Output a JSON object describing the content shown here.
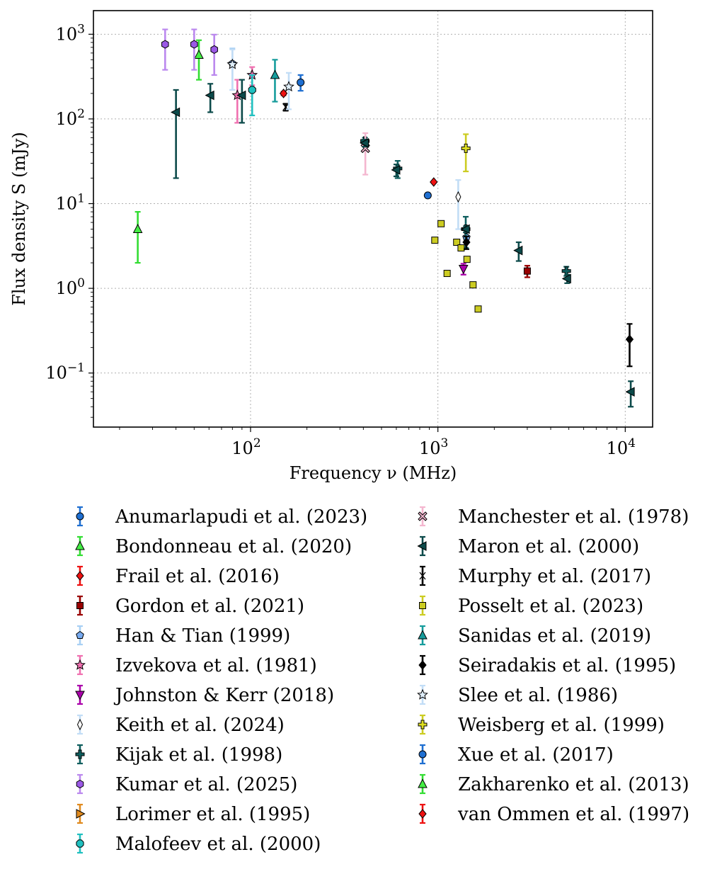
{
  "chart_data": {
    "type": "scatter",
    "title": "",
    "xlabel": "Frequency ν (MHz)",
    "ylabel": "Flux density S (mJy)",
    "xscale": "log",
    "yscale": "log",
    "xlim": [
      14.5,
      14000
    ],
    "ylim": [
      0.023,
      1900
    ],
    "grid": true,
    "x_ticks": [
      {
        "value": 100,
        "base": "10",
        "exp": "2"
      },
      {
        "value": 1000,
        "base": "10",
        "exp": "3"
      },
      {
        "value": 10000,
        "base": "10",
        "exp": "4"
      }
    ],
    "y_ticks": [
      {
        "value": 0.1,
        "base": "10",
        "exp": "−1"
      },
      {
        "value": 1,
        "base": "10",
        "exp": "0"
      },
      {
        "value": 10,
        "base": "10",
        "exp": "1"
      },
      {
        "value": 100,
        "base": "10",
        "exp": "2"
      },
      {
        "value": 1000,
        "base": "10",
        "exp": "3"
      }
    ],
    "series": [
      {
        "name": "Anumarlapudi et al. (2023)",
        "marker": "circle",
        "color": "#1f6fd1",
        "ecolor": "#1f6fd1",
        "points": [
          {
            "x": 185,
            "y": 270,
            "lo": 215,
            "hi": 330
          }
        ]
      },
      {
        "name": "Bondonneau et al. (2020)",
        "marker": "triangle-up",
        "color": "#44ee44",
        "ecolor": "#33dd33",
        "points": [
          {
            "x": 25,
            "y": 5,
            "lo": 2,
            "hi": 8
          },
          {
            "x": 53,
            "y": 570,
            "lo": 290,
            "hi": 850
          }
        ]
      },
      {
        "name": "Frail et al. (2016)",
        "marker": "diamond",
        "color": "#ee1111",
        "ecolor": "#ee1111",
        "points": [
          {
            "x": 150,
            "y": 200,
            "lo": 190,
            "hi": 210
          }
        ]
      },
      {
        "name": "Gordon et al. (2021)",
        "marker": "square",
        "color": "#990000",
        "ecolor": "#990000",
        "points": [
          {
            "x": 3000,
            "y": 1.6,
            "lo": 1.35,
            "hi": 1.85
          }
        ]
      },
      {
        "name": "Han & Tian (1999)",
        "marker": "pentagon",
        "color": "#77aaf0",
        "ecolor": "#a8d0f4",
        "points": [
          {
            "x": 1420,
            "y": 4,
            "lo": 3.5,
            "hi": 4.5
          },
          {
            "x": 80,
            "y": 450,
            "lo": 220,
            "hi": 680
          }
        ]
      },
      {
        "name": "Izvekova et al. (1981)",
        "marker": "star",
        "color": "#f070b0",
        "ecolor": "#f070b0",
        "points": [
          {
            "x": 85,
            "y": 190,
            "lo": 90,
            "hi": 290
          },
          {
            "x": 102,
            "y": 330,
            "lo": 250,
            "hi": 410
          }
        ]
      },
      {
        "name": "Johnston & Kerr (2018)",
        "marker": "triangle-down",
        "color": "#aa00aa",
        "ecolor": "#aa00aa",
        "points": [
          {
            "x": 1369,
            "y": 1.7,
            "lo": 1.45,
            "hi": 1.95
          }
        ]
      },
      {
        "name": "Keith et al. (2024)",
        "marker": "thin-diamond",
        "color": "#ffffff",
        "ecolor": "#c2ddf6",
        "points": [
          {
            "x": 1284,
            "y": 12,
            "lo": 5,
            "hi": 19
          }
        ]
      },
      {
        "name": "Kijak et al. (1998)",
        "marker": "plus",
        "color": "#0e5e5e",
        "ecolor": "#0e5e5e",
        "points": [
          {
            "x": 408,
            "y": 55,
            "lo": 50,
            "hi": 60
          },
          {
            "x": 610,
            "y": 26,
            "lo": 20,
            "hi": 32
          },
          {
            "x": 1408,
            "y": 5,
            "lo": 3,
            "hi": 7
          },
          {
            "x": 4850,
            "y": 1.6,
            "lo": 1.4,
            "hi": 1.8
          }
        ]
      },
      {
        "name": "Kumar et al. (2025)",
        "marker": "hexagon",
        "color": "#9b59e6",
        "ecolor": "#bb88ee",
        "points": [
          {
            "x": 35,
            "y": 760,
            "lo": 380,
            "hi": 1140
          },
          {
            "x": 50,
            "y": 760,
            "lo": 380,
            "hi": 1140
          },
          {
            "x": 64,
            "y": 660,
            "lo": 330,
            "hi": 990
          }
        ]
      },
      {
        "name": "Lorimer et al. (1995)",
        "marker": "triangle-right",
        "color": "#e08a1e",
        "ecolor": "#e08a1e",
        "points": []
      },
      {
        "name": "Malofeev et al. (2000)",
        "marker": "octagon",
        "color": "#20c0c0",
        "ecolor": "#20c0c0",
        "points": [
          {
            "x": 102,
            "y": 220,
            "lo": 110,
            "hi": 330
          }
        ]
      },
      {
        "name": "Manchester et al. (1978)",
        "marker": "x-filled",
        "color": "#f4b6cf",
        "ecolor": "#f4b6cf",
        "points": [
          {
            "x": 410,
            "y": 45,
            "lo": 22,
            "hi": 68
          }
        ]
      },
      {
        "name": "Maron et al. (2000)",
        "marker": "triangle-left",
        "color": "#0c4a4a",
        "ecolor": "#0c4a4a",
        "points": [
          {
            "x": 40,
            "y": 120,
            "lo": 20,
            "hi": 220
          },
          {
            "x": 61,
            "y": 190,
            "lo": 120,
            "hi": 260
          },
          {
            "x": 90,
            "y": 190,
            "lo": 90,
            "hi": 290
          },
          {
            "x": 408,
            "y": 52,
            "lo": 47,
            "hi": 57
          },
          {
            "x": 600,
            "y": 25,
            "lo": 21,
            "hi": 29
          },
          {
            "x": 1410,
            "y": 5,
            "lo": 4.6,
            "hi": 5.4
          },
          {
            "x": 2700,
            "y": 2.8,
            "lo": 2.1,
            "hi": 3.5
          },
          {
            "x": 4900,
            "y": 1.3,
            "lo": 1.15,
            "hi": 1.45
          },
          {
            "x": 10700,
            "y": 0.06,
            "lo": 0.04,
            "hi": 0.08
          }
        ]
      },
      {
        "name": "Murphy et al. (2017)",
        "marker": "x-thin",
        "color": "#000000",
        "ecolor": "#000000",
        "points": [
          {
            "x": 154,
            "y": 138,
            "lo": 125,
            "hi": 151
          }
        ]
      },
      {
        "name": "Posselt et al. (2023)",
        "marker": "square",
        "color": "#cccc22",
        "ecolor": "#cccc22",
        "points": [
          {
            "x": 963,
            "y": 3.7
          },
          {
            "x": 1040,
            "y": 5.8
          },
          {
            "x": 1120,
            "y": 1.5
          },
          {
            "x": 1260,
            "y": 3.5
          },
          {
            "x": 1330,
            "y": 3
          },
          {
            "x": 1430,
            "y": 2.2
          },
          {
            "x": 1540,
            "y": 1.1
          },
          {
            "x": 1640,
            "y": 0.57
          }
        ]
      },
      {
        "name": "Sanidas et al. (2019)",
        "marker": "triangle-up",
        "color": "#169c9c",
        "ecolor": "#169c9c",
        "points": [
          {
            "x": 135,
            "y": 330,
            "lo": 160,
            "hi": 500
          }
        ]
      },
      {
        "name": "Seiradakis et al. (1995)",
        "marker": "diamond",
        "color": "#000000",
        "ecolor": "#000000",
        "points": [
          {
            "x": 10550,
            "y": 0.25,
            "lo": 0.12,
            "hi": 0.38
          },
          {
            "x": 1420,
            "y": 3.5,
            "lo": 2.9,
            "hi": 4.1
          }
        ]
      },
      {
        "name": "Slee et al. (1986)",
        "marker": "star",
        "color": "#dfeefa",
        "ecolor": "#c2ddf6",
        "points": [
          {
            "x": 80,
            "y": 440,
            "lo": 220,
            "hi": 660
          },
          {
            "x": 160,
            "y": 240,
            "lo": 130,
            "hi": 350
          }
        ]
      },
      {
        "name": "Weisberg et al. (1999)",
        "marker": "plus",
        "color": "#dddd22",
        "ecolor": "#cccc22",
        "points": [
          {
            "x": 1410,
            "y": 45,
            "lo": 24,
            "hi": 66
          }
        ]
      },
      {
        "name": "Xue et al. (2017)",
        "marker": "circle",
        "color": "#1f6fd1",
        "ecolor": "#1f6fd1",
        "points": [
          {
            "x": 883,
            "y": 12.5
          }
        ]
      },
      {
        "name": "Zakharenko et al. (2013)",
        "marker": "triangle-up",
        "color": "#44ee44",
        "ecolor": "#33dd33",
        "points": []
      },
      {
        "name": "van Ommen et al. (1997)",
        "marker": "diamond",
        "color": "#ee1111",
        "ecolor": "#ee1111",
        "points": [
          {
            "x": 950,
            "y": 18
          }
        ]
      }
    ]
  }
}
